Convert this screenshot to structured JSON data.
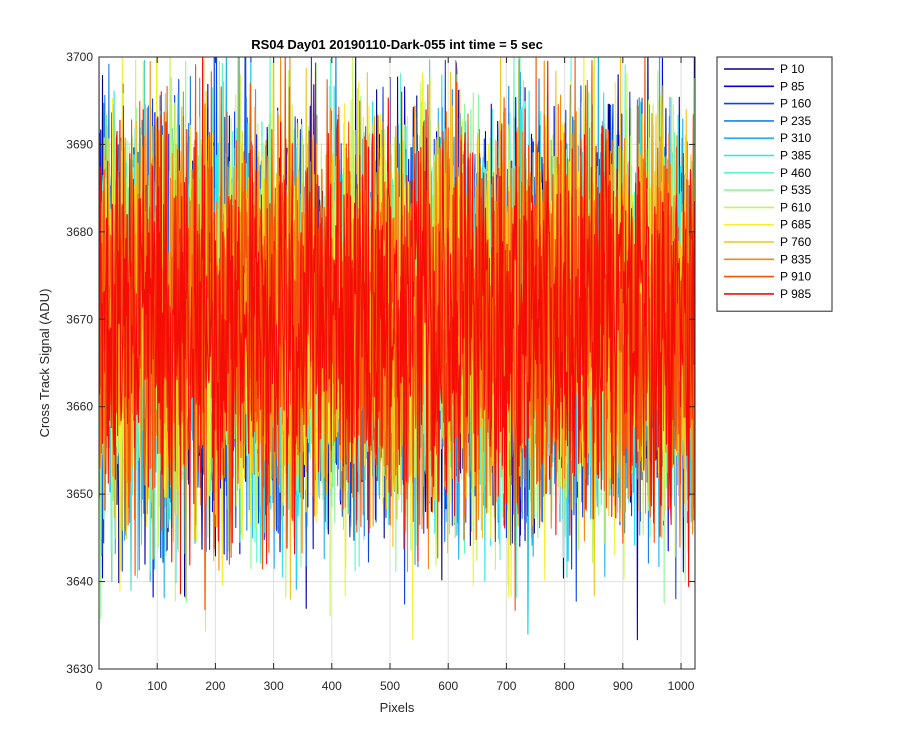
{
  "chart_data": {
    "type": "line",
    "title": "RS04 Day01 20190110-Dark-055 int time = 5 sec",
    "xlabel": "Pixels",
    "ylabel": "Cross Track Signal (ADU)",
    "xlim": [
      0,
      1024
    ],
    "ylim": [
      3630,
      3700
    ],
    "xticks": [
      0,
      100,
      200,
      300,
      400,
      500,
      600,
      700,
      800,
      900,
      1000
    ],
    "yticks": [
      3630,
      3640,
      3650,
      3660,
      3670,
      3680,
      3690,
      3700
    ],
    "grid": true,
    "legend_position": "outside-top-right",
    "mean_level": 3670,
    "noise_band": [
      3655,
      3685
    ],
    "extremes": [
      {
        "x": 737,
        "y": 3634
      },
      {
        "x": 55,
        "y": 3639
      },
      {
        "x": 22,
        "y": 3640
      },
      {
        "x": 115,
        "y": 3643
      },
      {
        "x": 180,
        "y": 3700
      },
      {
        "x": 300,
        "y": 3700
      },
      {
        "x": 145,
        "y": 3696
      },
      {
        "x": 260,
        "y": 3697
      },
      {
        "x": 520,
        "y": 3696
      },
      {
        "x": 960,
        "y": 3695
      }
    ],
    "series": [
      {
        "name": "P 10",
        "color": "#00008f"
      },
      {
        "name": "P 85",
        "color": "#0000d8"
      },
      {
        "name": "P 160",
        "color": "#0b44e0"
      },
      {
        "name": "P 235",
        "color": "#1f7ee8"
      },
      {
        "name": "P 310",
        "color": "#20b2f0"
      },
      {
        "name": "P 385",
        "color": "#26e7f0"
      },
      {
        "name": "P 460",
        "color": "#5ff4cc"
      },
      {
        "name": "P 535",
        "color": "#8ff59a"
      },
      {
        "name": "P 610",
        "color": "#c6f55d"
      },
      {
        "name": "P 685",
        "color": "#f5f02a"
      },
      {
        "name": "P 760",
        "color": "#f5c31a"
      },
      {
        "name": "P 835",
        "color": "#f58a12"
      },
      {
        "name": "P 910",
        "color": "#f5520a"
      },
      {
        "name": "P 985",
        "color": "#f50d05"
      }
    ]
  }
}
